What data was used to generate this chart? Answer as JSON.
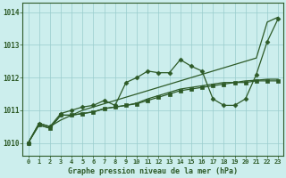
{
  "xlabel": "Graphe pression niveau de la mer (hPa)",
  "x": [
    0,
    1,
    2,
    3,
    4,
    5,
    6,
    7,
    8,
    9,
    10,
    11,
    12,
    13,
    14,
    15,
    16,
    17,
    18,
    19,
    20,
    21,
    22,
    23
  ],
  "series_straight": [
    1010.0,
    1010.6,
    1010.5,
    1010.7,
    1010.85,
    1011.0,
    1011.1,
    1011.2,
    1011.3,
    1011.4,
    1011.5,
    1011.6,
    1011.7,
    1011.8,
    1011.9,
    1012.0,
    1012.1,
    1012.2,
    1012.3,
    1012.4,
    1012.5,
    1012.6,
    1013.7,
    1013.85
  ],
  "series_lower1": [
    1010.0,
    1010.55,
    1010.45,
    1010.85,
    1010.85,
    1010.9,
    1010.95,
    1011.05,
    1011.1,
    1011.15,
    1011.2,
    1011.3,
    1011.4,
    1011.5,
    1011.6,
    1011.65,
    1011.7,
    1011.75,
    1011.8,
    1011.85,
    1011.85,
    1011.9,
    1011.9,
    1011.9
  ],
  "series_lower2": [
    1010.0,
    1010.55,
    1010.45,
    1010.85,
    1010.85,
    1010.9,
    1010.95,
    1011.05,
    1011.1,
    1011.15,
    1011.22,
    1011.35,
    1011.45,
    1011.55,
    1011.65,
    1011.7,
    1011.75,
    1011.8,
    1011.85,
    1011.85,
    1011.9,
    1011.92,
    1011.95,
    1011.95
  ],
  "series_upper": [
    1010.0,
    1010.6,
    1010.5,
    1010.9,
    1011.0,
    1011.1,
    1011.15,
    1011.3,
    1011.15,
    1011.85,
    1012.0,
    1012.2,
    1012.15,
    1012.15,
    1012.55,
    1012.35,
    1012.2,
    1011.35,
    1011.15,
    1011.15,
    1011.35,
    1012.1,
    1013.1,
    1013.8
  ],
  "ylim": [
    1009.6,
    1014.3
  ],
  "yticks": [
    1010,
    1011,
    1012,
    1013,
    1014
  ],
  "bg_color": "#cceeed",
  "grid_color": "#99cccc",
  "line_color": "#2d5a27",
  "markersize": 2.5,
  "linewidth": 0.9
}
